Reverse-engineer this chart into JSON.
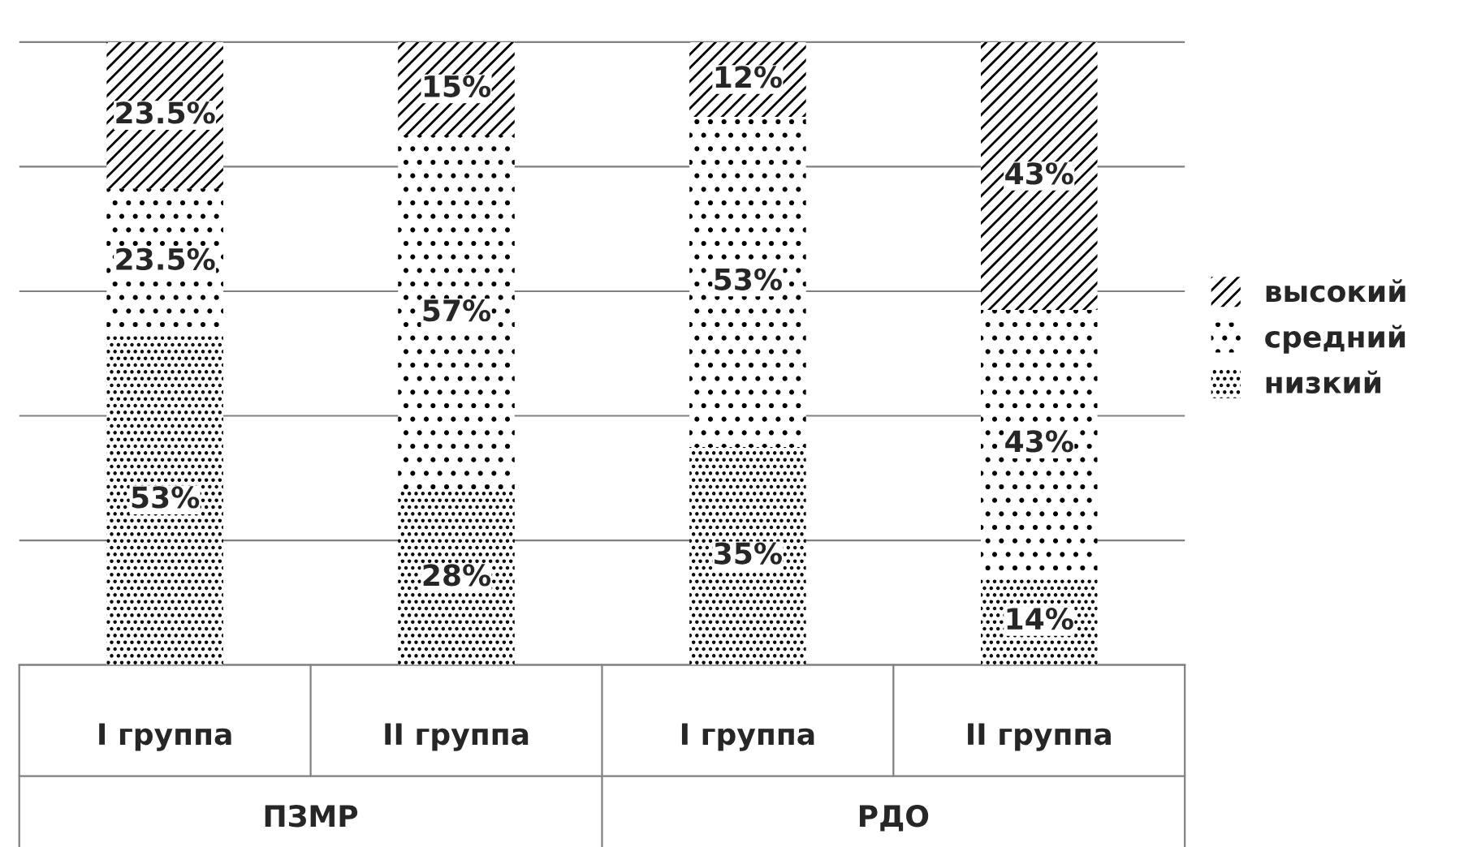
{
  "chart_data": {
    "type": "bar",
    "stacked": true,
    "categories": [
      "I группа",
      "II группа",
      "I группа",
      "II группа"
    ],
    "series": [
      {
        "name": "низкий",
        "color": "#000000",
        "values": [
          53,
          28,
          35,
          14
        ],
        "value_labels": [
          "53%",
          "28%",
          "35%",
          "14%"
        ]
      },
      {
        "name": "средний",
        "color": "#000000",
        "values": [
          23.5,
          57,
          53,
          43
        ],
        "value_labels": [
          "23.5%",
          "57%",
          "53%",
          "43%"
        ]
      },
      {
        "name": "высокий",
        "color": "#000000",
        "values": [
          23.5,
          15,
          12,
          43
        ],
        "value_labels": [
          "23.5%",
          "15%",
          "12%",
          "43%"
        ]
      }
    ],
    "grid": "y",
    "legend": "right",
    "annotations": [
      "ПЗМР",
      "РДО"
    ]
  }
}
